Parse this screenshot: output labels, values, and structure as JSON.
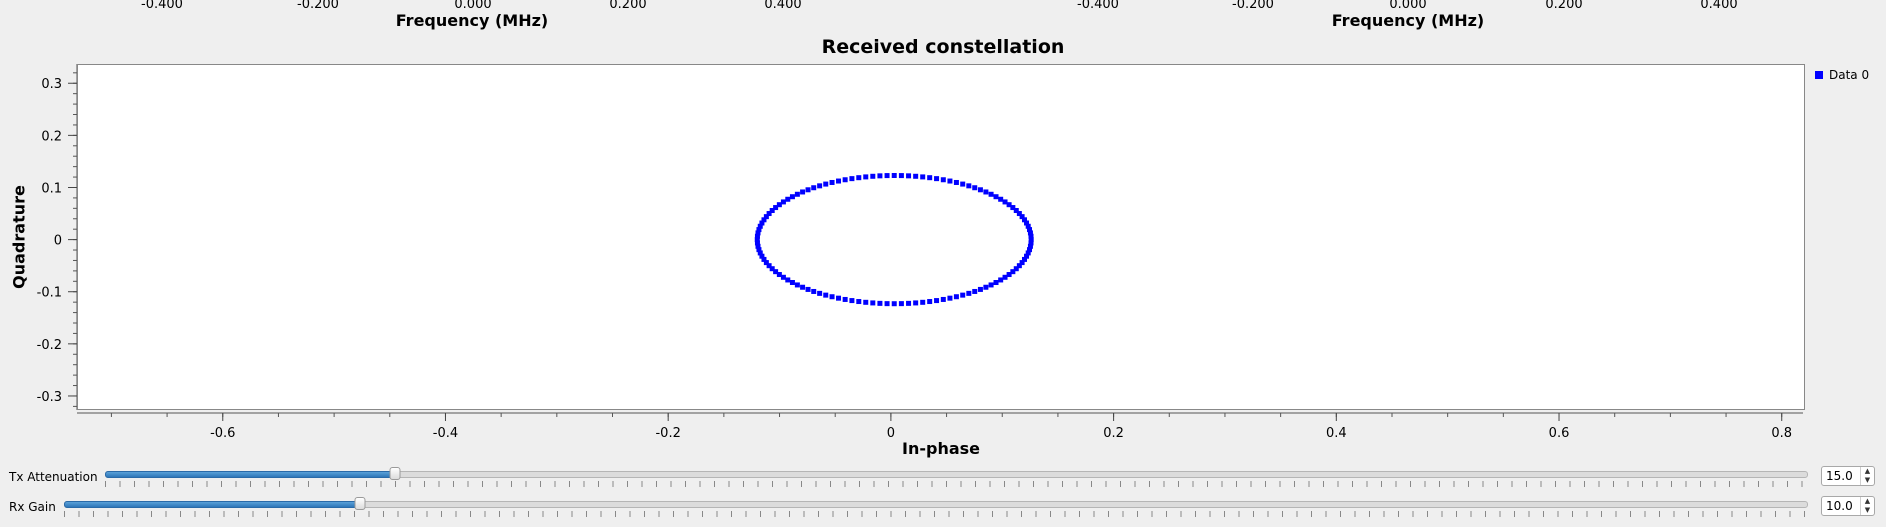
{
  "top_panels": [
    {
      "ticks": [
        "-0.400",
        "-0.200",
        "0.000",
        "0.200",
        "0.400"
      ],
      "title": "Frequency (MHz)"
    },
    {
      "ticks": [
        "-0.400",
        "-0.200",
        "0.000",
        "0.200",
        "0.400"
      ],
      "title": "Frequency (MHz)"
    }
  ],
  "chart_data": {
    "type": "scatter",
    "title": "Received constellation",
    "xlabel": "In-phase",
    "ylabel": "Quadrature",
    "xlim": [
      -0.73,
      0.82
    ],
    "ylim": [
      -0.325,
      0.335
    ],
    "xticks": [
      -0.6,
      -0.4,
      -0.2,
      0,
      0.2,
      0.4,
      0.6,
      0.8
    ],
    "xtick_labels": [
      "-0.6",
      "-0.4",
      "-0.2",
      "0",
      "0.2",
      "0.4",
      "0.6",
      "0.8"
    ],
    "yticks": [
      0.3,
      0.2,
      0.1,
      0,
      -0.1,
      -0.2,
      -0.3
    ],
    "ytick_labels": [
      "0.3",
      "0.2",
      "0.1",
      "0",
      "-0.1",
      "-0.2",
      "-0.3"
    ],
    "grid": false,
    "legend_position": "top-right",
    "series": [
      {
        "name": "Data 0",
        "color": "#0000ff",
        "shape": "ring",
        "center": [
          0.003,
          0.0
        ],
        "radius_x": 0.123,
        "radius_y": 0.123,
        "points": 120
      }
    ]
  },
  "controls": {
    "tx_attenuation": {
      "label": "Tx Attenuation",
      "value": "15.0",
      "fraction": 0.17
    },
    "rx_gain": {
      "label": "Rx Gain",
      "value": "10.0",
      "fraction": 0.17
    }
  }
}
